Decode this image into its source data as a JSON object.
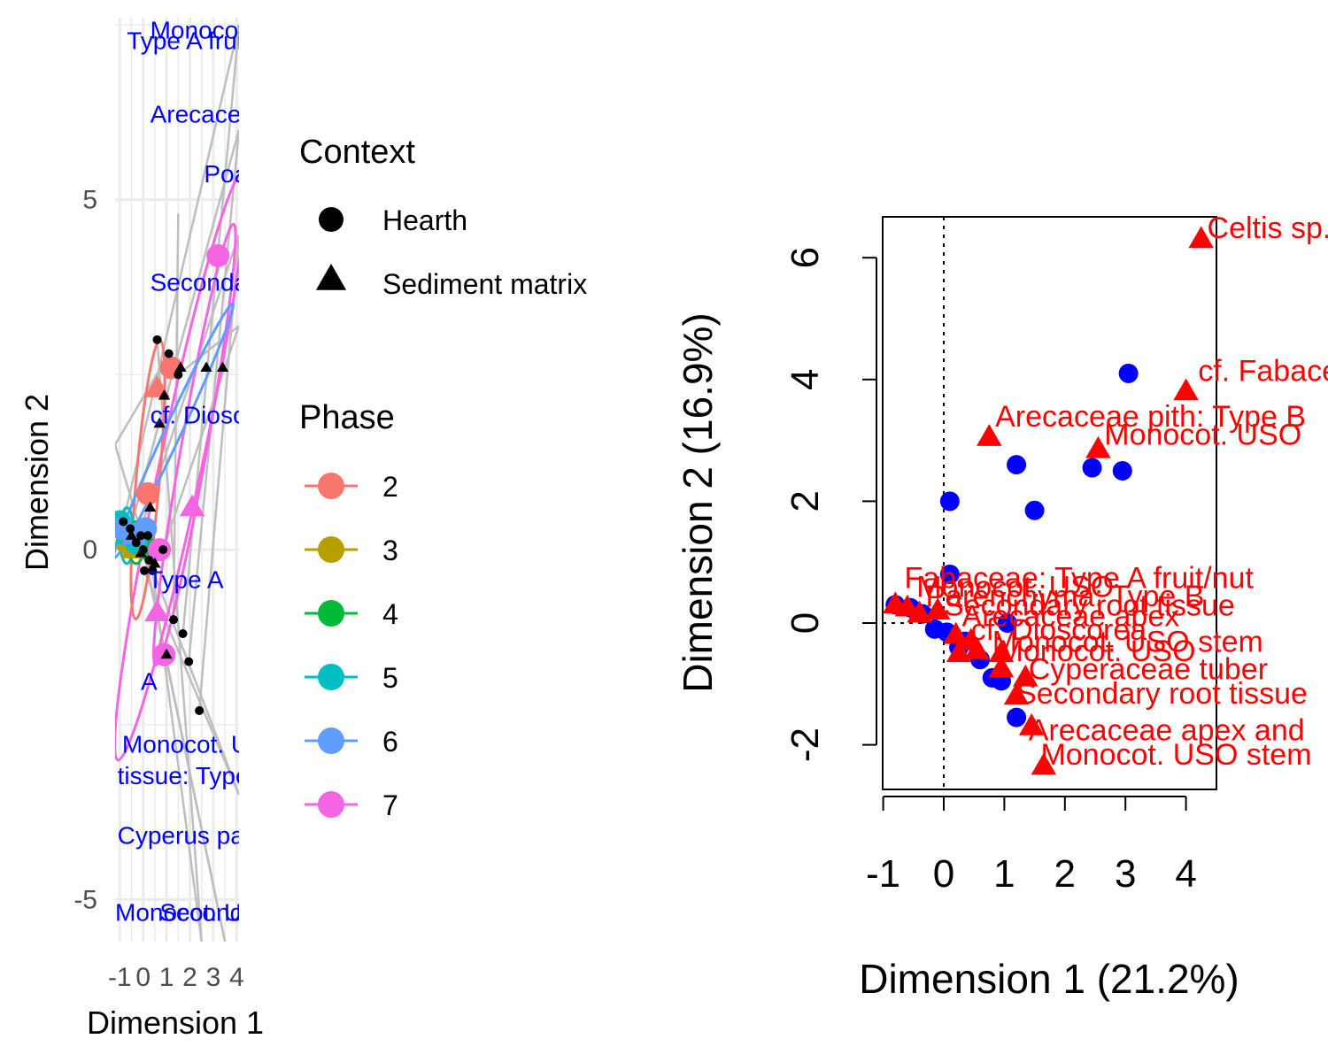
{
  "colors": {
    "phase_2": "#F8766D",
    "phase_3": "#B79F00",
    "phase_4": "#00BA38",
    "phase_5": "#00BFC4",
    "phase_6": "#619CFF",
    "phase_7": "#F564E3",
    "hearth_blue": "#0000FF",
    "sediment_red": "#FF0000",
    "grid": "#EBEBEB",
    "gray_line": "#BEBEBE"
  },
  "chart_data": [
    {
      "type": "scatter",
      "title": "",
      "xlabel": "Dimension 1",
      "ylabel": "Dimension 2",
      "xlim": [
        -1.2,
        4.1
      ],
      "ylim": [
        -5.6,
        7.6
      ],
      "x_ticks": [
        -1,
        0,
        1,
        2,
        3,
        4
      ],
      "x_tick_labels": [
        "-1",
        "0",
        "1",
        "2",
        "3",
        "4"
      ],
      "y_ticks": [
        -5,
        0,
        5
      ],
      "y_tick_labels": [
        "-5",
        "0",
        "5"
      ],
      "grid": true,
      "legend_position": "right",
      "legend": {
        "context_title": "Context",
        "context_items": [
          "Hearth",
          "Sediment matrix"
        ],
        "phase_title": "Phase",
        "phase_items": [
          "2",
          "3",
          "4",
          "5",
          "6",
          "7"
        ]
      },
      "text_labels": [
        {
          "text": "Monocot. USO",
          "x": 0.3,
          "y": 7.3
        },
        {
          "text": "Type A fruit/nut",
          "x": -0.7,
          "y": 7.15
        },
        {
          "text": "Arecaceae pith",
          "x": 0.3,
          "y": 6.1
        },
        {
          "text": "Poaceae",
          "x": 2.6,
          "y": 5.25
        },
        {
          "text": "Secondary root tissue",
          "x": 0.3,
          "y": 3.7
        },
        {
          "text": "cf. Dioscorea",
          "x": 0.3,
          "y": 1.8
        },
        {
          "text": "Type A",
          "x": 0.2,
          "y": -0.55
        },
        {
          "text": "A",
          "x": -0.1,
          "y": -2.0
        },
        {
          "text": "Monocot. USO",
          "x": -0.9,
          "y": -2.9
        },
        {
          "text": "tissue: Type",
          "x": -1.1,
          "y": -3.35
        },
        {
          "text": "Cyperus papyrifera seed",
          "x": -1.1,
          "y": -4.2
        },
        {
          "text": "Monocot. USO",
          "x": -1.2,
          "y": -5.3
        },
        {
          "text": "Secondary",
          "x": 0.7,
          "y": -5.3
        }
      ],
      "series": [
        {
          "name": "Hearth",
          "x": [
            -0.85,
            -0.55,
            -0.3,
            -0.1,
            0.05,
            0.2,
            0.4,
            0.85,
            1.3,
            1.7,
            1.95,
            2.4,
            0.0,
            0.25,
            0.6,
            1.1,
            1.5
          ],
          "y": [
            0.4,
            0.3,
            0.1,
            0.2,
            -0.3,
            0.2,
            -0.3,
            0.0,
            -1.0,
            -1.2,
            -1.6,
            -2.3,
            0.0,
            -0.15,
            3.0,
            2.8,
            2.5
          ]
        },
        {
          "name": "Sediment matrix",
          "x": [
            -0.5,
            -0.1,
            0.3,
            0.7,
            0.9,
            1.6,
            2.7,
            3.4,
            1.0,
            0.5
          ],
          "y": [
            0.2,
            -0.05,
            0.6,
            1.8,
            2.2,
            2.6,
            2.6,
            2.6,
            -1.5,
            -0.2
          ]
        },
        {
          "name": "2",
          "x": [
            -0.9,
            -0.6,
            0.2,
            0.6,
            1.2
          ],
          "y": [
            0.3,
            0.2,
            0.8,
            2.3,
            2.6
          ]
        },
        {
          "name": "3",
          "x": [
            -0.7,
            -0.4
          ],
          "y": [
            0.1,
            0.0
          ]
        },
        {
          "name": "4",
          "x": [
            -0.5,
            -0.1,
            0.3
          ],
          "y": [
            0.2,
            0.1,
            0.0
          ]
        },
        {
          "name": "5",
          "x": [
            -1.0,
            -0.7,
            -0.3
          ],
          "y": [
            0.4,
            0.2,
            0.1
          ]
        },
        {
          "name": "6",
          "x": [
            -0.9,
            -0.4,
            0.1
          ],
          "y": [
            0.3,
            0.2,
            0.3
          ]
        },
        {
          "name": "7",
          "x": [
            3.2,
            2.1,
            0.7,
            0.6,
            0.9
          ],
          "y": [
            4.2,
            0.6,
            0.0,
            -0.9,
            -1.5
          ]
        }
      ]
    },
    {
      "type": "scatter",
      "title": "",
      "xlabel": "Dimension 1 (21.2%)",
      "ylabel": "Dimension 2 (16.9%)",
      "xlim": [
        -1,
        4.5
      ],
      "ylim": [
        -2.7,
        6.7
      ],
      "x_ticks": [
        -1,
        0,
        1,
        2,
        3,
        4
      ],
      "x_tick_labels": [
        "-1",
        "0",
        "1",
        "2",
        "3",
        "4"
      ],
      "y_ticks": [
        -2,
        0,
        2,
        4,
        6
      ],
      "y_tick_labels": [
        "-2",
        "0",
        "2",
        "4",
        "6"
      ],
      "grid": false,
      "reference_line_x": 0,
      "series": [
        {
          "name": "Hearth",
          "x": [
            3.05,
            1.2,
            2.45,
            2.95,
            1.5,
            0.1,
            0.1,
            -0.8,
            -0.55,
            -0.35,
            -0.15,
            0.05,
            0.25,
            0.6,
            0.8,
            0.95,
            1.2,
            1.05,
            0.35
          ],
          "y": [
            4.1,
            2.6,
            2.55,
            2.5,
            1.85,
            2.0,
            0.8,
            0.3,
            0.25,
            0.15,
            -0.1,
            -0.15,
            -0.4,
            -0.6,
            -0.9,
            -0.95,
            -1.55,
            0.0,
            -0.3
          ]
        },
        {
          "name": "Sediment matrix",
          "x": [
            4.25,
            4.0,
            0.75,
            2.55,
            1.65,
            1.45,
            1.2,
            1.35,
            0.95,
            0.55,
            0.25,
            0.95,
            -0.8,
            -0.6,
            -0.4,
            -0.1,
            0.2,
            0.45
          ],
          "y": [
            6.3,
            3.8,
            3.05,
            2.85,
            -2.35,
            -1.7,
            -1.2,
            -0.9,
            -0.75,
            -0.45,
            -0.5,
            -0.5,
            0.3,
            0.25,
            0.15,
            0.2,
            -0.2,
            -0.3
          ]
        }
      ],
      "point_labels": [
        {
          "text": "Celtis sp.",
          "x": 4.35,
          "y": 6.5
        },
        {
          "text": "cf. Fabaceae",
          "x": 4.2,
          "y": 4.15
        },
        {
          "text": "Arecaceae pith: Type B",
          "x": 0.85,
          "y": 3.4
        },
        {
          "text": "Monocot. USO",
          "x": 2.65,
          "y": 3.1
        },
        {
          "text": "Fabaceae: Type A fruit/nut",
          "x": -0.65,
          "y": 0.75
        },
        {
          "text": "Monocot. USO",
          "x": -0.45,
          "y": 0.6
        },
        {
          "text": "Parenchyma: Type B",
          "x": -0.3,
          "y": 0.45
        },
        {
          "text": "Secondary root tissue",
          "x": 0.0,
          "y": 0.3
        },
        {
          "text": "Arecaceae apex",
          "x": 0.3,
          "y": 0.12
        },
        {
          "text": "cf. Dioscorea",
          "x": 0.45,
          "y": -0.1
        },
        {
          "text": "Monocot. USO stem",
          "x": 0.8,
          "y": -0.3
        },
        {
          "text": "Monocot. USO",
          "x": 0.9,
          "y": -0.45
        },
        {
          "text": "Cyperaceae tuber",
          "x": 1.4,
          "y": -0.75
        },
        {
          "text": "Secondary root tissue",
          "x": 1.2,
          "y": -1.15
        },
        {
          "text": "Arecaceae apex and",
          "x": 1.4,
          "y": -1.75
        },
        {
          "text": "Monocot. USO stem",
          "x": 1.6,
          "y": -2.15
        }
      ]
    }
  ]
}
